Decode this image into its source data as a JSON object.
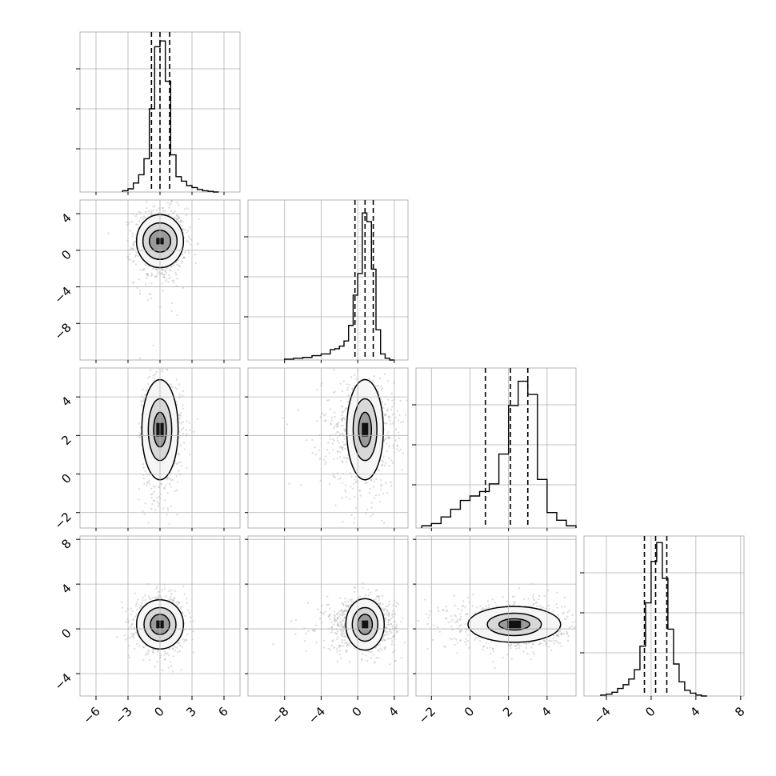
{
  "chart_data": {
    "type": "corner",
    "n_params": 4,
    "grid": true,
    "colors": {
      "line": "#000000",
      "grid": "#b0b0b0",
      "scatter": "#b3b3b3",
      "background": "#ffffff"
    },
    "params": [
      {
        "range": [
          -7.5,
          7.5
        ],
        "ticks": [
          -6,
          -3,
          0,
          3,
          6
        ],
        "tick_labels": [
          "−6",
          "−3",
          "0",
          "3",
          "6"
        ],
        "quantiles": [
          -0.8,
          0.0,
          0.9
        ],
        "hist": {
          "bins": [
            -3.5,
            -3.0,
            -2.5,
            -2.0,
            -1.5,
            -1.0,
            -0.5,
            0.0,
            0.5,
            1.0,
            1.5,
            2.0,
            2.5,
            3.0,
            3.5,
            4.0,
            4.5,
            5.0,
            5.5
          ],
          "counts": [
            2,
            5,
            14,
            27,
            52,
            130,
            227,
            236,
            173,
            58,
            24,
            17,
            10,
            7,
            4,
            2,
            1,
            0
          ]
        },
        "hist_max": 250
      },
      {
        "range": [
          -12,
          5.5
        ],
        "ticks": [
          -8,
          -4,
          0,
          4
        ],
        "tick_labels": [
          "−8",
          "−4",
          "0",
          "4"
        ],
        "quantiles": [
          -0.3,
          0.8,
          1.7
        ],
        "hist": {
          "bins": [
            -8.0,
            -7.0,
            -6.0,
            -5.0,
            -4.0,
            -3.0,
            -2.5,
            -2.0,
            -1.5,
            -1.0,
            -0.5,
            0.0,
            0.5,
            1.0,
            1.5,
            2.0,
            2.5,
            3.0,
            3.5,
            4.0
          ],
          "counts": [
            1,
            2,
            3,
            5,
            7,
            12,
            13,
            16,
            22,
            40,
            75,
            100,
            170,
            160,
            105,
            35,
            7,
            2,
            0
          ]
        },
        "hist_max": 185
      },
      {
        "range": [
          -2.8,
          5.5
        ],
        "ticks": [
          -2,
          0,
          2,
          4
        ],
        "tick_labels": [
          "−2",
          "0",
          "2",
          "4"
        ],
        "quantiles": [
          0.8,
          2.1,
          3.0
        ],
        "hist": {
          "bins": [
            -2.5,
            -2.0,
            -1.5,
            -1.0,
            -0.5,
            0.0,
            0.5,
            1.0,
            1.5,
            2.0,
            2.5,
            3.0,
            3.5,
            4.0,
            4.5,
            5.0,
            5.5
          ],
          "counts": [
            2,
            4,
            10,
            17,
            25,
            29,
            33,
            40,
            67,
            111,
            133,
            121,
            44,
            14,
            7,
            2
          ]
        },
        "hist_max": 145
      },
      {
        "range": [
          -6,
          8.3
        ],
        "ticks": [
          -4,
          0,
          4,
          8
        ],
        "tick_labels": [
          "−4",
          "0",
          "4",
          "8"
        ],
        "quantiles": [
          -0.6,
          0.4,
          1.4
        ],
        "hist": {
          "bins": [
            -4.5,
            -4.0,
            -3.5,
            -3.0,
            -2.5,
            -2.0,
            -1.5,
            -1.0,
            -0.5,
            0.0,
            0.5,
            1.0,
            1.5,
            2.0,
            2.5,
            3.0,
            3.5,
            4.0,
            4.5,
            5.0
          ],
          "counts": [
            1,
            2,
            4,
            8,
            12,
            18,
            28,
            53,
            99,
            143,
            163,
            125,
            71,
            34,
            15,
            6,
            3,
            1,
            0
          ]
        },
        "hist_max": 170
      }
    ],
    "pairs": [
      {
        "row": 1,
        "col": 0,
        "center": [
          0.0,
          1.0
        ],
        "sigma": [
          1.2,
          1.8
        ],
        "skew": [
          0,
          -1.2
        ],
        "contours": [
          {
            "rx": 1.0,
            "ry": 1.2
          },
          {
            "rx": 1.6,
            "ry": 2.0
          },
          {
            "rx": 2.2,
            "ry": 2.9
          }
        ]
      },
      {
        "row": 2,
        "col": 0,
        "center": [
          0.0,
          2.3
        ],
        "sigma": [
          1.1,
          1.3
        ],
        "skew": [
          0.6,
          -0.8
        ],
        "contours": [
          {
            "rx": 0.6,
            "ry": 0.9
          },
          {
            "rx": 1.1,
            "ry": 1.6
          },
          {
            "rx": 1.7,
            "ry": 2.6
          }
        ]
      },
      {
        "row": 2,
        "col": 1,
        "center": [
          0.8,
          2.3
        ],
        "sigma": [
          1.6,
          1.3
        ],
        "skew": [
          -1.5,
          -0.8
        ],
        "contours": [
          {
            "rx": 0.7,
            "ry": 0.9
          },
          {
            "rx": 1.3,
            "ry": 1.6
          },
          {
            "rx": 2.0,
            "ry": 2.6
          }
        ]
      },
      {
        "row": 3,
        "col": 0,
        "center": [
          0.0,
          0.4
        ],
        "sigma": [
          1.2,
          1.2
        ],
        "skew": [
          0,
          0
        ],
        "contours": [
          {
            "rx": 0.9,
            "ry": 0.9
          },
          {
            "rx": 1.5,
            "ry": 1.5
          },
          {
            "rx": 2.2,
            "ry": 2.2
          }
        ]
      },
      {
        "row": 3,
        "col": 1,
        "center": [
          0.8,
          0.4
        ],
        "sigma": [
          1.7,
          1.2
        ],
        "skew": [
          -1.2,
          0
        ],
        "contours": [
          {
            "rx": 0.8,
            "ry": 0.9
          },
          {
            "rx": 1.4,
            "ry": 1.5
          },
          {
            "rx": 2.1,
            "ry": 2.3
          }
        ]
      },
      {
        "row": 3,
        "col": 2,
        "center": [
          2.3,
          0.4
        ],
        "sigma": [
          1.3,
          1.1
        ],
        "skew": [
          -0.9,
          0
        ],
        "contours": [
          {
            "rx": 0.8,
            "ry": 0.5
          },
          {
            "rx": 1.4,
            "ry": 1.0
          },
          {
            "rx": 2.4,
            "ry": 1.6
          }
        ]
      }
    ]
  }
}
